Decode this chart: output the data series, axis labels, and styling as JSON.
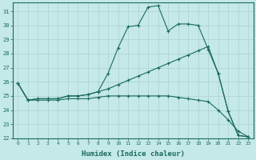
{
  "xlabel": "Humidex (Indice chaleur)",
  "bg_color": "#c5e8e8",
  "line_color": "#1a6b5a",
  "grid_color": "#aad0d0",
  "ylim": [
    22,
    31.6
  ],
  "xlim": [
    -0.5,
    23.5
  ],
  "yticks": [
    22,
    23,
    24,
    25,
    26,
    27,
    28,
    29,
    30,
    31
  ],
  "xticks": [
    0,
    1,
    2,
    3,
    4,
    5,
    6,
    7,
    8,
    9,
    10,
    11,
    12,
    13,
    14,
    15,
    16,
    17,
    18,
    19,
    20,
    21,
    22,
    23
  ],
  "x": [
    0,
    1,
    2,
    3,
    4,
    5,
    6,
    7,
    8,
    9,
    10,
    11,
    12,
    13,
    14,
    15,
    16,
    17,
    18,
    19,
    20,
    21,
    22,
    23
  ],
  "series1_y": [
    25.9,
    24.7,
    24.8,
    24.8,
    24.8,
    25.0,
    25.0,
    25.1,
    25.3,
    26.6,
    28.4,
    29.9,
    30.0,
    31.3,
    31.4,
    29.6,
    30.1,
    30.1,
    30.0,
    28.3,
    26.6,
    23.9,
    22.2,
    22.1
  ],
  "series2_y": [
    25.9,
    24.7,
    24.8,
    24.8,
    24.8,
    25.0,
    25.0,
    25.1,
    25.3,
    25.5,
    25.8,
    26.1,
    26.4,
    26.7,
    27.0,
    27.3,
    27.6,
    27.9,
    28.2,
    28.5,
    26.6,
    23.9,
    22.2,
    22.1
  ],
  "series3_y": [
    25.9,
    24.7,
    24.7,
    24.7,
    24.7,
    24.8,
    24.8,
    24.8,
    24.9,
    25.0,
    25.0,
    25.0,
    25.0,
    25.0,
    25.0,
    25.0,
    24.9,
    24.8,
    24.7,
    24.6,
    24.0,
    23.3,
    22.5,
    22.1
  ]
}
